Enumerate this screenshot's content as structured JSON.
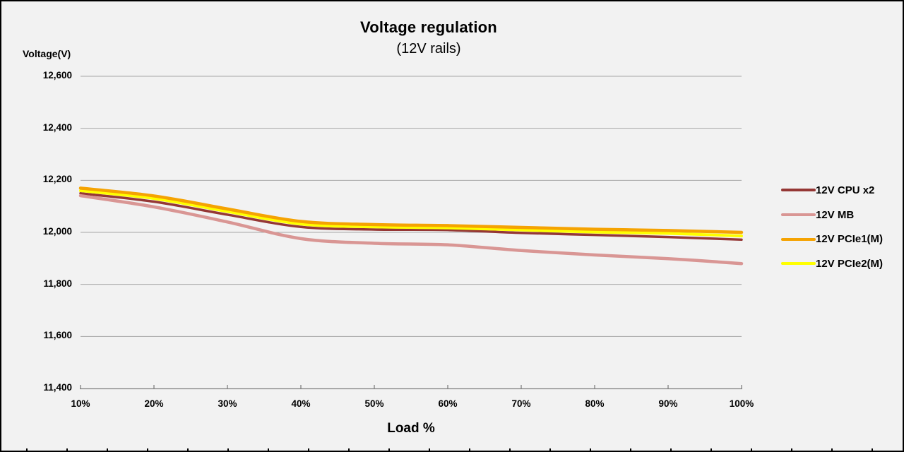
{
  "title": "Voltage regulation",
  "subtitle": "(12V rails)",
  "colors": {
    "background": "#f2f2f2",
    "frame_border": "#000000",
    "gridline": "#a6a6a6",
    "axis_line": "#808080",
    "text": "#000000"
  },
  "chart_data": {
    "type": "line",
    "title": "Voltage regulation",
    "subtitle": "(12V rails)",
    "xlabel": "Load %",
    "ylabel": "Voltage(V)",
    "ylim": [
      11400,
      12600
    ],
    "y_tick_step": 200,
    "y_tick_labels": [
      "12,600",
      "12,400",
      "12,200",
      "12,000",
      "11,800",
      "11,600",
      "11,400"
    ],
    "x": [
      10,
      20,
      30,
      40,
      50,
      60,
      70,
      80,
      90,
      100
    ],
    "x_tick_labels": [
      "10%",
      "20%",
      "30%",
      "40%",
      "50%",
      "60%",
      "70%",
      "80%",
      "90%",
      "100%"
    ],
    "grid": true,
    "legend_position": "right",
    "series": [
      {
        "name": "12V CPU x2",
        "color": "#953735",
        "values": [
          12150,
          12118,
          12068,
          12021,
          12011,
          12009,
          11998,
          11990,
          11982,
          11972
        ]
      },
      {
        "name": "12V MB",
        "color": "#d99694",
        "values": [
          12141,
          12098,
          12040,
          11976,
          11958,
          11952,
          11930,
          11913,
          11899,
          11880
        ]
      },
      {
        "name": "12V PCIe1(M)",
        "color": "#f5a302",
        "values": [
          12170,
          12140,
          12090,
          12042,
          12030,
          12026,
          12019,
          12012,
          12007,
          12000
        ]
      },
      {
        "name": "12V PCIe2(M)",
        "color": "#ffff00",
        "values": [
          12160,
          12130,
          12080,
          12032,
          12021,
          12017,
          12009,
          12001,
          11996,
          11986
        ]
      }
    ]
  }
}
